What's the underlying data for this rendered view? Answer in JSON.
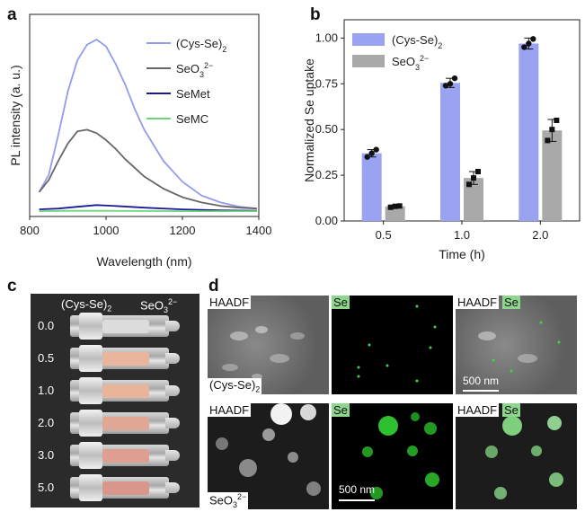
{
  "panels": {
    "a": "a",
    "b": "b",
    "c": "c",
    "d": "d"
  },
  "chart_data": [
    {
      "type": "line",
      "xlabel": "Wavelength (nm)",
      "ylabel": "PL intensity (a. u.)",
      "xlim": [
        800,
        1400
      ],
      "xticks": [
        "800",
        "1000",
        "1200",
        "1400"
      ],
      "series": [
        {
          "name": "(Cys-Se)",
          "sub": "2",
          "color": "#8f9cf0",
          "x": [
            825,
            850,
            875,
            900,
            925,
            950,
            975,
            1000,
            1025,
            1050,
            1075,
            1100,
            1150,
            1200,
            1250,
            1300,
            1350,
            1395
          ],
          "y": [
            0.12,
            0.22,
            0.45,
            0.7,
            0.88,
            0.97,
            1.0,
            0.96,
            0.86,
            0.74,
            0.6,
            0.48,
            0.3,
            0.18,
            0.1,
            0.06,
            0.035,
            0.025
          ]
        },
        {
          "name": "SeO",
          "sub": "3",
          "sup": "2−",
          "color": "#666666",
          "x": [
            825,
            850,
            875,
            900,
            925,
            950,
            975,
            1000,
            1025,
            1050,
            1075,
            1100,
            1150,
            1200,
            1250,
            1300,
            1350,
            1395
          ],
          "y": [
            0.12,
            0.19,
            0.3,
            0.4,
            0.47,
            0.48,
            0.46,
            0.42,
            0.37,
            0.31,
            0.26,
            0.21,
            0.14,
            0.09,
            0.06,
            0.04,
            0.03,
            0.025
          ]
        },
        {
          "name": "SeMet",
          "color": "#1a1a99",
          "x": [
            825,
            875,
            925,
            975,
            1025,
            1100,
            1200,
            1300,
            1395
          ],
          "y": [
            0.02,
            0.025,
            0.035,
            0.045,
            0.04,
            0.03,
            0.02,
            0.015,
            0.012
          ]
        },
        {
          "name": "SeMC",
          "color": "#6fd67f",
          "x": [
            825,
            900,
            1000,
            1100,
            1200,
            1300,
            1395
          ],
          "y": [
            0.01,
            0.012,
            0.012,
            0.011,
            0.01,
            0.01,
            0.01
          ]
        }
      ]
    },
    {
      "type": "bar",
      "xlabel": "Time (h)",
      "ylabel": "Normalized Se uptake",
      "ylim": [
        0,
        1.1
      ],
      "yticks": [
        "0.00",
        "0.25",
        "0.50",
        "0.75",
        "1.00"
      ],
      "categories": [
        "0.5",
        "1.0",
        "2.0"
      ],
      "series": [
        {
          "name": "(Cys-Se)",
          "sub": "2",
          "color": "#9aa2f2",
          "values": [
            0.37,
            0.755,
            0.97
          ],
          "errors": [
            0.02,
            0.025,
            0.03
          ],
          "points": [
            [
              0.35,
              0.37,
              0.39
            ],
            [
              0.74,
              0.75,
              0.78
            ],
            [
              0.95,
              0.97,
              0.995
            ]
          ]
        },
        {
          "name": "SeO",
          "sub": "3",
          "sup": "2−",
          "color": "#a9a9a9",
          "values": [
            0.08,
            0.235,
            0.495
          ],
          "errors": [
            0.005,
            0.035,
            0.06
          ],
          "points": [
            [
              0.075,
              0.08,
              0.082
            ],
            [
              0.2,
              0.235,
              0.27
            ],
            [
              0.44,
              0.5,
              0.55
            ]
          ]
        }
      ]
    }
  ],
  "photo": {
    "header": {
      "left": "(Cys-Se)",
      "left_sub": "2",
      "right": "SeO",
      "right_sub": "3",
      "right_sup": "2−"
    },
    "rows": [
      {
        "label": "0.0",
        "fill": "#dcdcdc"
      },
      {
        "label": "0.5",
        "fill": "#e9b59c"
      },
      {
        "label": "1.0",
        "fill": "#e8b49a"
      },
      {
        "label": "2.0",
        "fill": "#e0a795"
      },
      {
        "label": "3.0",
        "fill": "#de9f91"
      },
      {
        "label": "5.0",
        "fill": "#d9968a"
      }
    ]
  },
  "micro": {
    "haadf": "HAADF",
    "se": "Se",
    "row1_caption": "(Cys-Se)",
    "row1_caption_sub": "2",
    "row2_caption": "SeO",
    "row2_caption_sub": "3",
    "row2_caption_sup": "2−",
    "scale": "500 nm"
  }
}
